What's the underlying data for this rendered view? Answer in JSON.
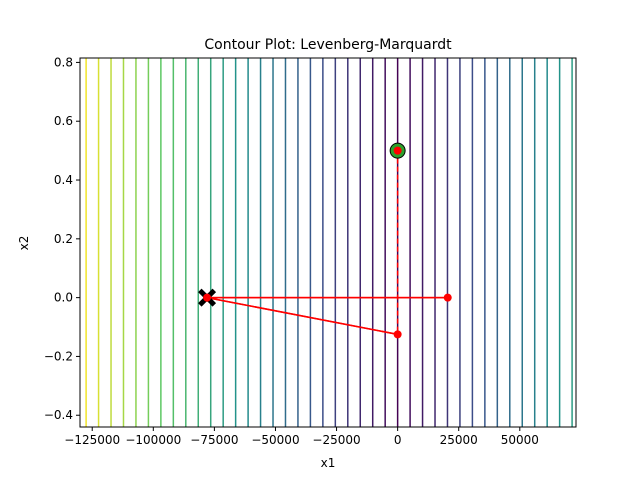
{
  "chart_data": {
    "type": "contour",
    "title": "Contour Plot: Levenberg-Marquardt",
    "xlabel": "x1",
    "ylabel": "x2",
    "xlim": [
      -130000,
      73000
    ],
    "ylim": [
      -0.44,
      0.815
    ],
    "xticks": [
      -125000,
      -100000,
      -75000,
      -50000,
      -25000,
      0,
      25000,
      50000
    ],
    "xtick_labels": [
      "−125000",
      "−100000",
      "−75000",
      "−50000",
      "−25000",
      "0",
      "25000",
      "50000"
    ],
    "yticks": [
      -0.4,
      -0.2,
      0.0,
      0.2,
      0.4,
      0.6,
      0.8
    ],
    "ytick_labels": [
      "−0.4",
      "−0.2",
      "0.0",
      "0.2",
      "0.4",
      "0.6",
      "0.8"
    ],
    "contour_colormap": [
      "#440154",
      "#3b528b",
      "#21918c",
      "#5ec962",
      "#fde725"
    ],
    "contour_levels": {
      "count": 50,
      "center_x1": 0,
      "spacing_x1": 5100
    },
    "path": {
      "name": "",
      "color": "#ff0000",
      "linestyle": "solid",
      "points": [
        {
          "x1": -78000,
          "x2": 0.0
        },
        {
          "x1": 20500,
          "x2": 0.0
        },
        {
          "x1": -78000,
          "x2": 0.0
        },
        {
          "x1": 0,
          "x2": -0.125
        },
        {
          "x1": -78000,
          "x2": 0.0
        }
      ]
    },
    "vertical_path": {
      "color": "#ff0000",
      "linestyle": "dashed",
      "points": [
        {
          "x1": 0,
          "x2": 0.5
        },
        {
          "x1": 0,
          "x2": -0.125
        }
      ]
    },
    "start_marker": {
      "x1": 0,
      "x2": 0.5,
      "ring_color": "#2ca02c",
      "dot_color": "#ff0000"
    },
    "end_marker": {
      "x1": -78000,
      "x2": 0.0,
      "marker": "X",
      "color": "#000000"
    }
  }
}
